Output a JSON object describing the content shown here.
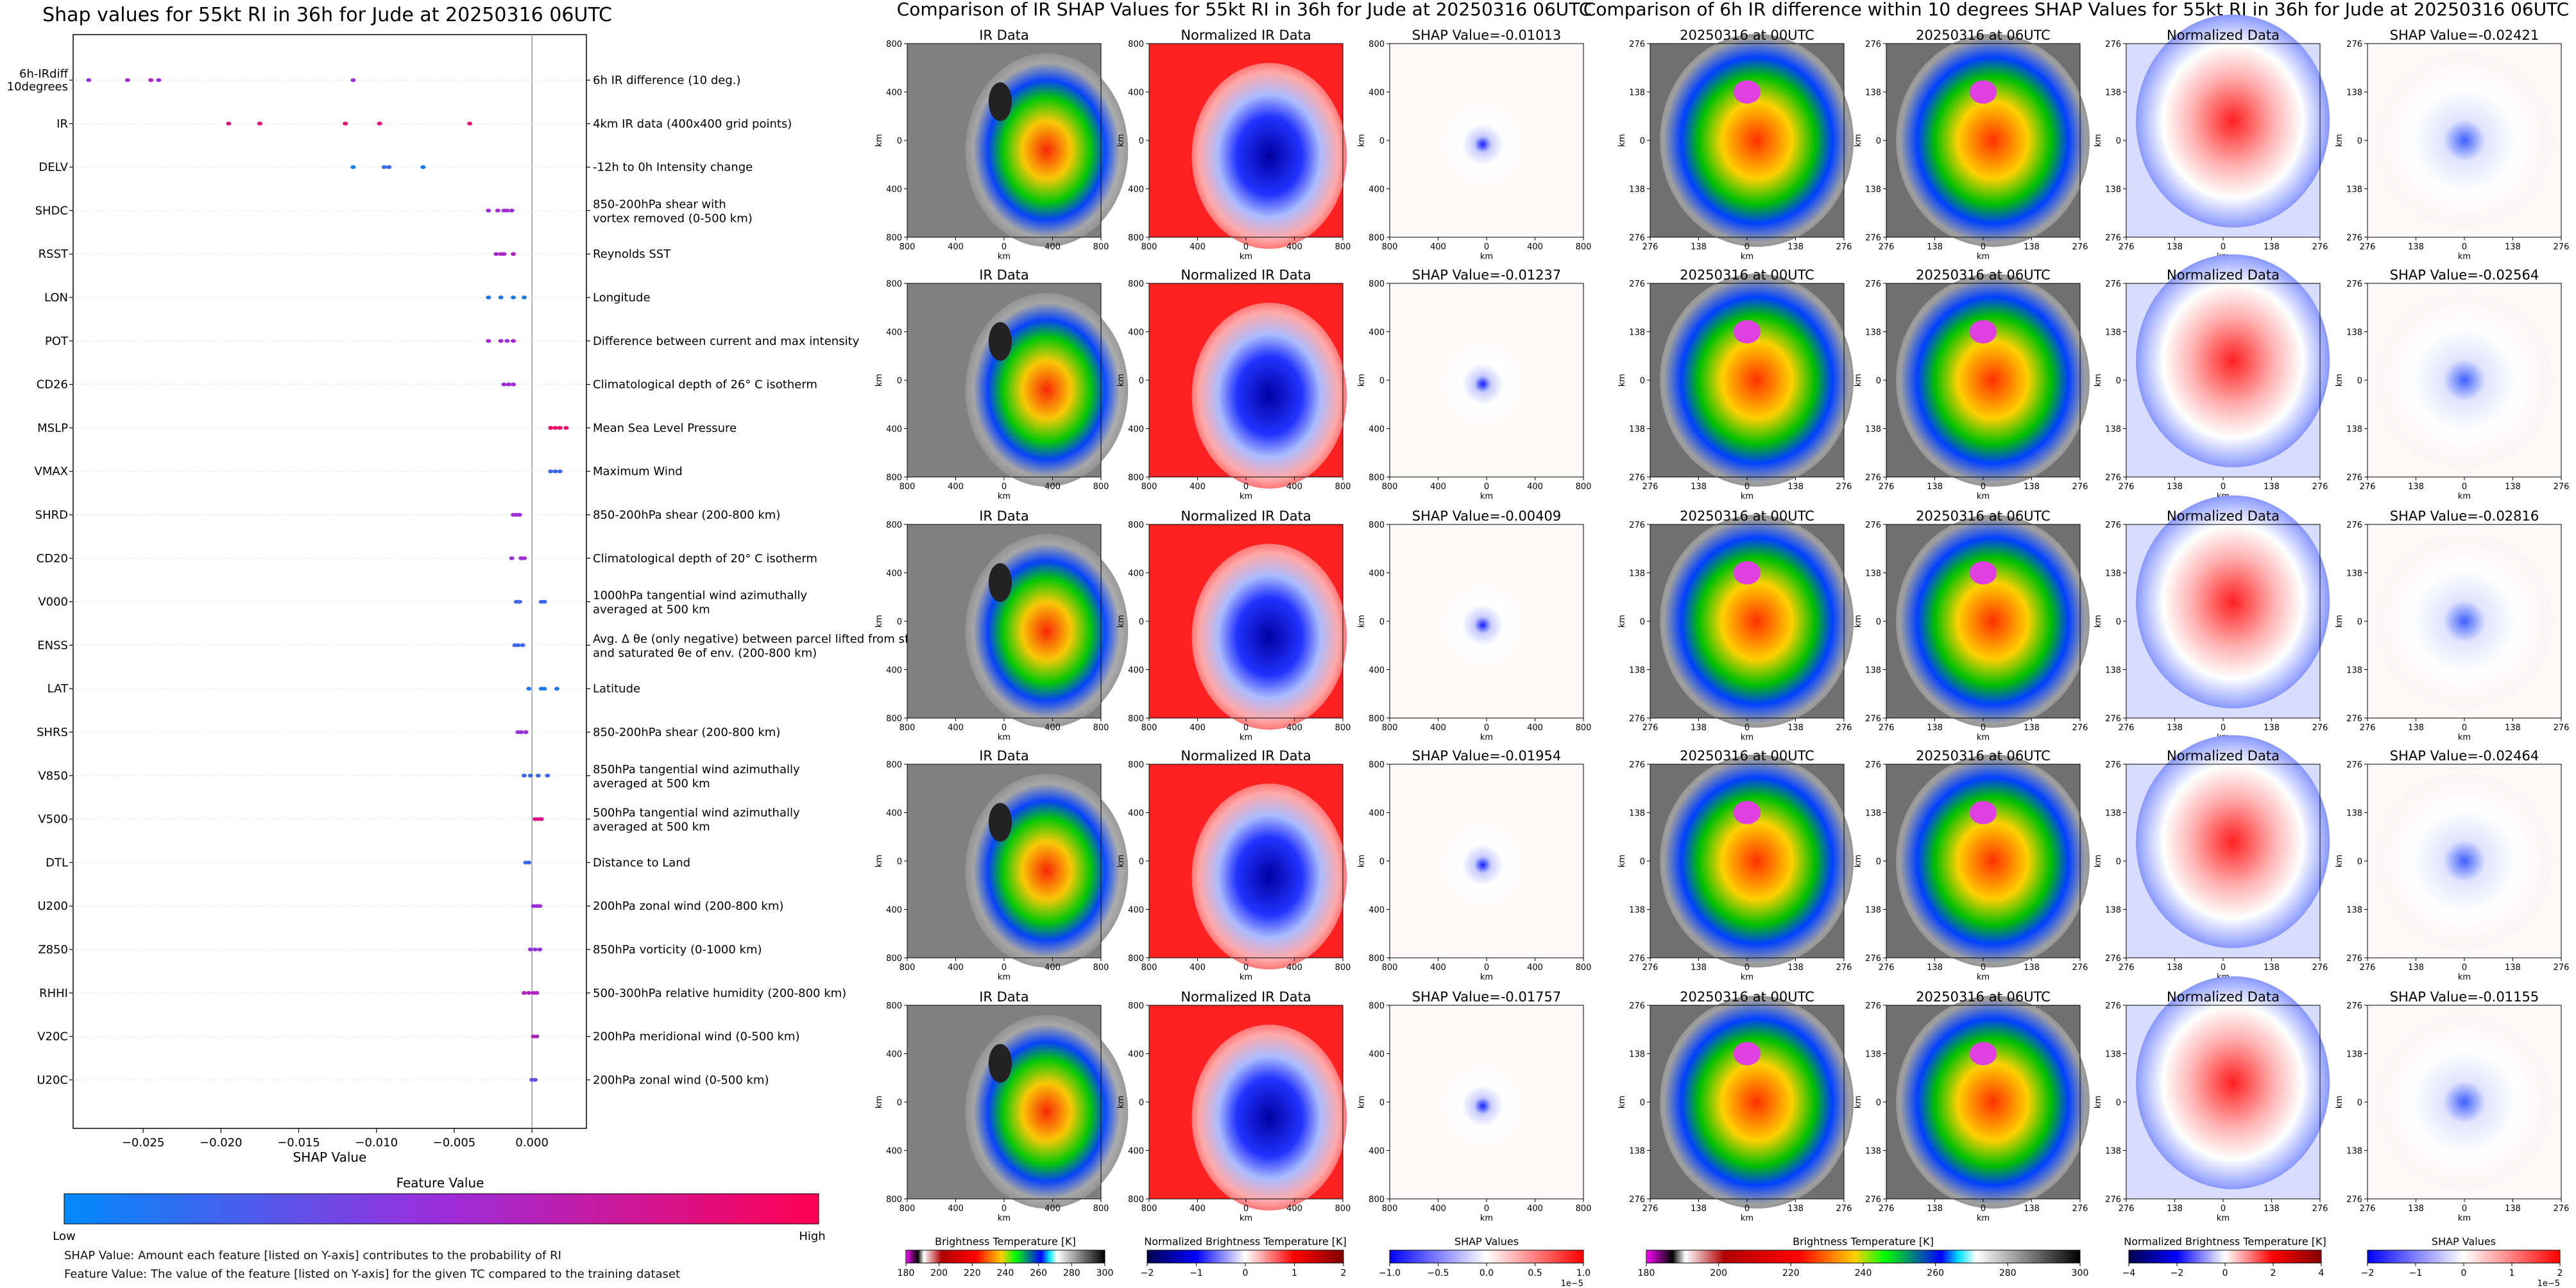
{
  "shap_summary": {
    "title": "Shap values for 55kt RI in 36h for Jude at 20250316 06UTC",
    "xlabel": "SHAP Value",
    "xlim": [
      -0.0295,
      0.0035
    ],
    "xticks": [
      -0.025,
      -0.02,
      -0.015,
      -0.01,
      -0.005,
      0.0
    ],
    "xtick_labels": [
      "−0.025",
      "−0.020",
      "−0.015",
      "−0.010",
      "−0.005",
      "0.000"
    ],
    "colors": {
      "low": "#008afb",
      "mid": "#9b2ddb",
      "high": "#ff0052"
    },
    "features": [
      {
        "name": "6h-IRdiff 10degrees",
        "desc": "6h IR difference (10 deg.)",
        "values": [
          -0.0285,
          -0.026,
          -0.0245,
          -0.024,
          -0.0115
        ],
        "fvals": [
          0.5,
          0.55,
          0.6,
          0.5,
          0.5
        ]
      },
      {
        "name": "IR",
        "desc": "4km IR data (400x400 grid points)",
        "values": [
          -0.0195,
          -0.0175,
          -0.012,
          -0.0098,
          -0.004
        ],
        "fvals": [
          0.85,
          0.9,
          0.9,
          0.85,
          0.9
        ]
      },
      {
        "name": "DELV",
        "desc": "-12h to 0h Intensity change",
        "values": [
          -0.0115,
          -0.0095,
          -0.0092,
          -0.007
        ],
        "fvals": [
          0.05,
          0.15,
          0.2,
          0.1
        ]
      },
      {
        "name": "SHDC",
        "desc": "850-200hPa shear with vortex removed (0-500 km)",
        "values": [
          -0.0028,
          -0.0022,
          -0.0018,
          -0.0016,
          -0.0013
        ],
        "fvals": [
          0.5,
          0.55,
          0.5,
          0.55,
          0.5
        ]
      },
      {
        "name": "RSST",
        "desc": "Reynolds SST",
        "values": [
          -0.0023,
          -0.002,
          -0.0018,
          -0.0012
        ],
        "fvals": [
          0.55,
          0.6,
          0.55,
          0.6
        ]
      },
      {
        "name": "LON",
        "desc": "Longitude",
        "values": [
          -0.0028,
          -0.002,
          -0.0012,
          -0.0005
        ],
        "fvals": [
          0.1,
          0.1,
          0.1,
          0.1
        ]
      },
      {
        "name": "POT",
        "desc": "Difference between current and max intensity",
        "values": [
          -0.0028,
          -0.002,
          -0.0016,
          -0.0012
        ],
        "fvals": [
          0.55,
          0.55,
          0.5,
          0.55
        ]
      },
      {
        "name": "CD26",
        "desc": "Climatological depth of 26° C isotherm",
        "values": [
          -0.0018,
          -0.0015,
          -0.0012
        ],
        "fvals": [
          0.5,
          0.5,
          0.5
        ]
      },
      {
        "name": "MSLP",
        "desc": "Mean Sea Level Pressure",
        "values": [
          0.0012,
          0.0015,
          0.0018,
          0.0022
        ],
        "fvals": [
          0.95,
          0.95,
          0.95,
          0.95
        ]
      },
      {
        "name": "VMAX",
        "desc": "Maximum Wind",
        "values": [
          0.0012,
          0.0015,
          0.0018
        ],
        "fvals": [
          0.2,
          0.2,
          0.2
        ]
      },
      {
        "name": "SHRD",
        "desc": "850-200hPa shear (200-800 km)",
        "values": [
          -0.0012,
          -0.001,
          -0.0008
        ],
        "fvals": [
          0.5,
          0.5,
          0.5
        ]
      },
      {
        "name": "CD20",
        "desc": "Climatological depth of 20° C isotherm",
        "values": [
          -0.0013,
          -0.0007,
          -0.0005
        ],
        "fvals": [
          0.5,
          0.5,
          0.5
        ]
      },
      {
        "name": "V000",
        "desc": "1000hPa tangential wind azimuthally averaged at 500 km",
        "values": [
          -0.001,
          -0.0008,
          0.0006,
          0.0008
        ],
        "fvals": [
          0.2,
          0.2,
          0.2,
          0.2
        ]
      },
      {
        "name": "ENSS",
        "desc": "Avg. Δ θe (only negative) between parcel lifted from sfc. and saturated θe of env. (200-800 km)",
        "values": [
          -0.0011,
          -0.0009,
          -0.0006
        ],
        "fvals": [
          0.2,
          0.2,
          0.2
        ]
      },
      {
        "name": "LAT",
        "desc": "Latitude",
        "values": [
          -0.0002,
          0.0006,
          0.0008,
          0.0016
        ],
        "fvals": [
          0.1,
          0.1,
          0.1,
          0.1
        ]
      },
      {
        "name": "SHRS",
        "desc": "850-200hPa shear (200-800 km)",
        "values": [
          -0.0009,
          -0.0007,
          -0.0004
        ],
        "fvals": [
          0.5,
          0.5,
          0.5
        ]
      },
      {
        "name": "V850",
        "desc": "850hPa tangential wind azimuthally averaged at 500 km",
        "values": [
          -0.0005,
          -0.0001,
          0.0004,
          0.001
        ],
        "fvals": [
          0.2,
          0.2,
          0.2,
          0.2
        ]
      },
      {
        "name": "V500",
        "desc": "500hPa tangential wind azimuthally averaged at 500 km",
        "values": [
          0.0002,
          0.0004,
          0.0006
        ],
        "fvals": [
          0.8,
          0.8,
          0.8
        ]
      },
      {
        "name": "DTL",
        "desc": "Distance to Land",
        "values": [
          -0.0004,
          -0.0002
        ],
        "fvals": [
          0.2,
          0.2
        ]
      },
      {
        "name": "U200",
        "desc": "200hPa zonal wind (200-800 km)",
        "values": [
          0.0001,
          0.0003,
          0.0005
        ],
        "fvals": [
          0.5,
          0.5,
          0.5
        ]
      },
      {
        "name": "Z850",
        "desc": "850hPa vorticity (0-1000 km)",
        "values": [
          -0.0001,
          0.0002,
          0.0005
        ],
        "fvals": [
          0.45,
          0.45,
          0.45
        ]
      },
      {
        "name": "RHHI",
        "desc": "500-300hPa relative humidity (200-800 km)",
        "values": [
          -0.0005,
          -0.0002,
          0.0001,
          0.0003
        ],
        "fvals": [
          0.6,
          0.6,
          0.6,
          0.6
        ]
      },
      {
        "name": "V20C",
        "desc": "200hPa meridional wind (0-500 km)",
        "values": [
          0.0001,
          0.0003
        ],
        "fvals": [
          0.6,
          0.6
        ]
      },
      {
        "name": "U20C",
        "desc": "200hPa zonal wind (0-500 km)",
        "values": [
          0.0,
          0.0002
        ],
        "fvals": [
          0.3,
          0.3
        ]
      }
    ],
    "colorbar_title": "Feature Value",
    "colorbar_low": "Low",
    "colorbar_high": "High",
    "note1": "SHAP Value: Amount each feature [listed on Y-axis] contributes to the probability of RI",
    "note2": "Feature Value: The value of the feature [listed on Y-axis] for the given TC compared to the training dataset"
  },
  "ir_section": {
    "title": "Comparison of IR SHAP Values for 55kt RI in 36h for Jude at 20250316 06UTC",
    "col_titles": [
      "IR Data",
      "Normalized IR Data"
    ],
    "shap_titles": [
      "SHAP Value=-0.01013",
      "SHAP Value=-0.01237",
      "SHAP Value=-0.00409",
      "SHAP Value=-0.01954",
      "SHAP Value=-0.01757"
    ],
    "xticks": [
      "800",
      "400",
      "0",
      "400",
      "800"
    ],
    "yticks": [
      "800",
      "400",
      "0",
      "400",
      "800"
    ],
    "axis_label": "km",
    "colorbars": [
      {
        "title": "Brightness Temperature [K]",
        "ticks": [
          "180",
          "200",
          "220",
          "240",
          "260",
          "280",
          "300"
        ]
      },
      {
        "title": "Normalized Brightness Temperature [K]",
        "ticks": [
          "−2",
          "−1",
          "0",
          "1",
          "2"
        ]
      },
      {
        "title": "SHAP Values",
        "ticks": [
          "−1.0",
          "−0.5",
          "0.0",
          "0.5",
          "1.0"
        ],
        "exponent": "1e−5"
      }
    ]
  },
  "diff_section": {
    "title": "Comparison of 6h IR difference within 10 degrees SHAP Values for 55kt RI in 36h for Jude at 20250316 06UTC",
    "col_titles": [
      "20250316 at 00UTC",
      "20250316 at 06UTC",
      "Normalized Data"
    ],
    "shap_titles": [
      "SHAP Value=-0.02421",
      "SHAP Value=-0.02564",
      "SHAP Value=-0.02816",
      "SHAP Value=-0.02464",
      "SHAP Value=-0.01155"
    ],
    "xticks": [
      "276",
      "138",
      "0",
      "138",
      "276"
    ],
    "yticks": [
      "276",
      "138",
      "0",
      "138",
      "276"
    ],
    "axis_label": "km",
    "colorbars": [
      {
        "title": "Brightness Temperature [K]",
        "ticks": [
          "180",
          "200",
          "220",
          "240",
          "260",
          "280",
          "300"
        ]
      },
      {
        "title": "Normalized Brightness Temperature [K]",
        "ticks": [
          "−4",
          "−2",
          "0",
          "2",
          "4"
        ]
      },
      {
        "title": "SHAP Values",
        "ticks": [
          "−2",
          "−1",
          "0",
          "1",
          "2"
        ],
        "exponent": "1e−5"
      }
    ]
  },
  "chart_data": [
    {
      "type": "scatter",
      "title": "Shap values for 55kt RI in 36h for Jude at 20250316 06UTC",
      "xlabel": "SHAP Value",
      "ylabel": "",
      "xlim": [
        -0.0295,
        0.0035
      ],
      "categories": [
        "6h-IRdiff 10degrees",
        "IR",
        "DELV",
        "SHDC",
        "RSST",
        "LON",
        "POT",
        "CD26",
        "MSLP",
        "VMAX",
        "SHRD",
        "CD20",
        "V000",
        "ENSS",
        "LAT",
        "SHRS",
        "V850",
        "V500",
        "DTL",
        "U200",
        "Z850",
        "RHHI",
        "V20C",
        "U20C"
      ]
    },
    {
      "type": "heatmap",
      "title": "Comparison of IR SHAP Values for 55kt RI in 36h for Jude at 20250316 06UTC",
      "panels_per_row": [
        "IR Data",
        "Normalized IR Data",
        "SHAP"
      ],
      "shap_values": [
        -0.01013,
        -0.01237,
        -0.00409,
        -0.01954,
        -0.01757
      ]
    },
    {
      "type": "heatmap",
      "title": "Comparison of 6h IR difference within 10 degrees SHAP Values for 55kt RI in 36h for Jude at 20250316 06UTC",
      "panels_per_row": [
        "20250316 at 00UTC",
        "20250316 at 06UTC",
        "Normalized Data",
        "SHAP"
      ],
      "shap_values": [
        -0.02421,
        -0.02564,
        -0.02816,
        -0.02464,
        -0.01155
      ]
    }
  ]
}
